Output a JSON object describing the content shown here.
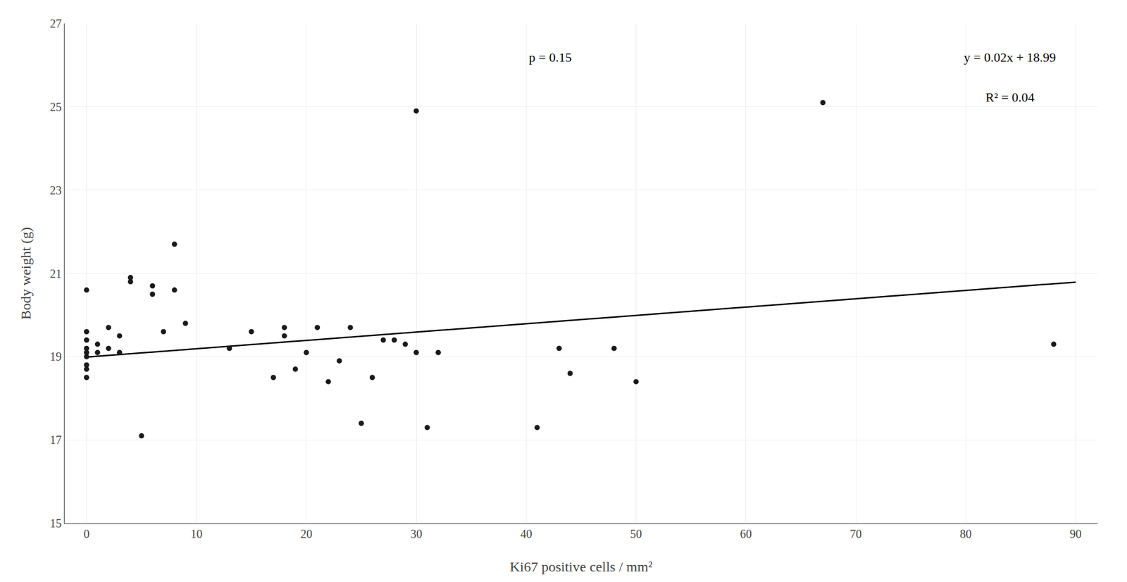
{
  "chart_data": {
    "type": "scatter",
    "xlabel": "Ki67 positive cells / mm²",
    "ylabel": "Body weight (g)",
    "series": [
      {
        "type": "scatter",
        "color": "#1a1a1a",
        "x": [
          0,
          0,
          0,
          0,
          0,
          0,
          0,
          0,
          0,
          1,
          1,
          2,
          2,
          3,
          3,
          4,
          4,
          5,
          6,
          6,
          7,
          8,
          8,
          9,
          13,
          15,
          17,
          18,
          18,
          19,
          20,
          21,
          22,
          23,
          24,
          25,
          26,
          27,
          28,
          29,
          30,
          30,
          31,
          32,
          41,
          43,
          44,
          48,
          50,
          67,
          88
        ],
        "values": [
          20.6,
          19.6,
          19.4,
          19.2,
          19.1,
          19.0,
          18.8,
          18.7,
          18.5,
          19.3,
          19.1,
          19.7,
          19.2,
          19.5,
          19.1,
          20.9,
          20.8,
          17.1,
          20.7,
          20.5,
          19.6,
          21.7,
          20.6,
          19.8,
          19.2,
          19.6,
          18.5,
          19.5,
          19.7,
          18.7,
          19.1,
          19.7,
          18.4,
          18.9,
          19.7,
          17.4,
          18.5,
          19.4,
          19.4,
          19.3,
          24.9,
          19.1,
          17.3,
          19.1,
          17.3,
          19.2,
          18.6,
          19.2,
          18.4,
          25.1,
          19.3
        ]
      },
      {
        "type": "line",
        "color": "#000000",
        "x": [
          0,
          90
        ],
        "values": [
          18.99,
          20.79
        ]
      }
    ],
    "annotations": [
      "p = 0.15",
      "y = 0.02x + 18.99",
      "R² = 0.04"
    ],
    "xlim": [
      -2,
      92
    ],
    "ylim": [
      15,
      27
    ],
    "xticks": [
      0,
      10,
      20,
      30,
      40,
      50,
      60,
      70,
      80,
      90
    ],
    "yticks": [
      15,
      17,
      19,
      21,
      23,
      25,
      27
    ],
    "grid": true
  }
}
